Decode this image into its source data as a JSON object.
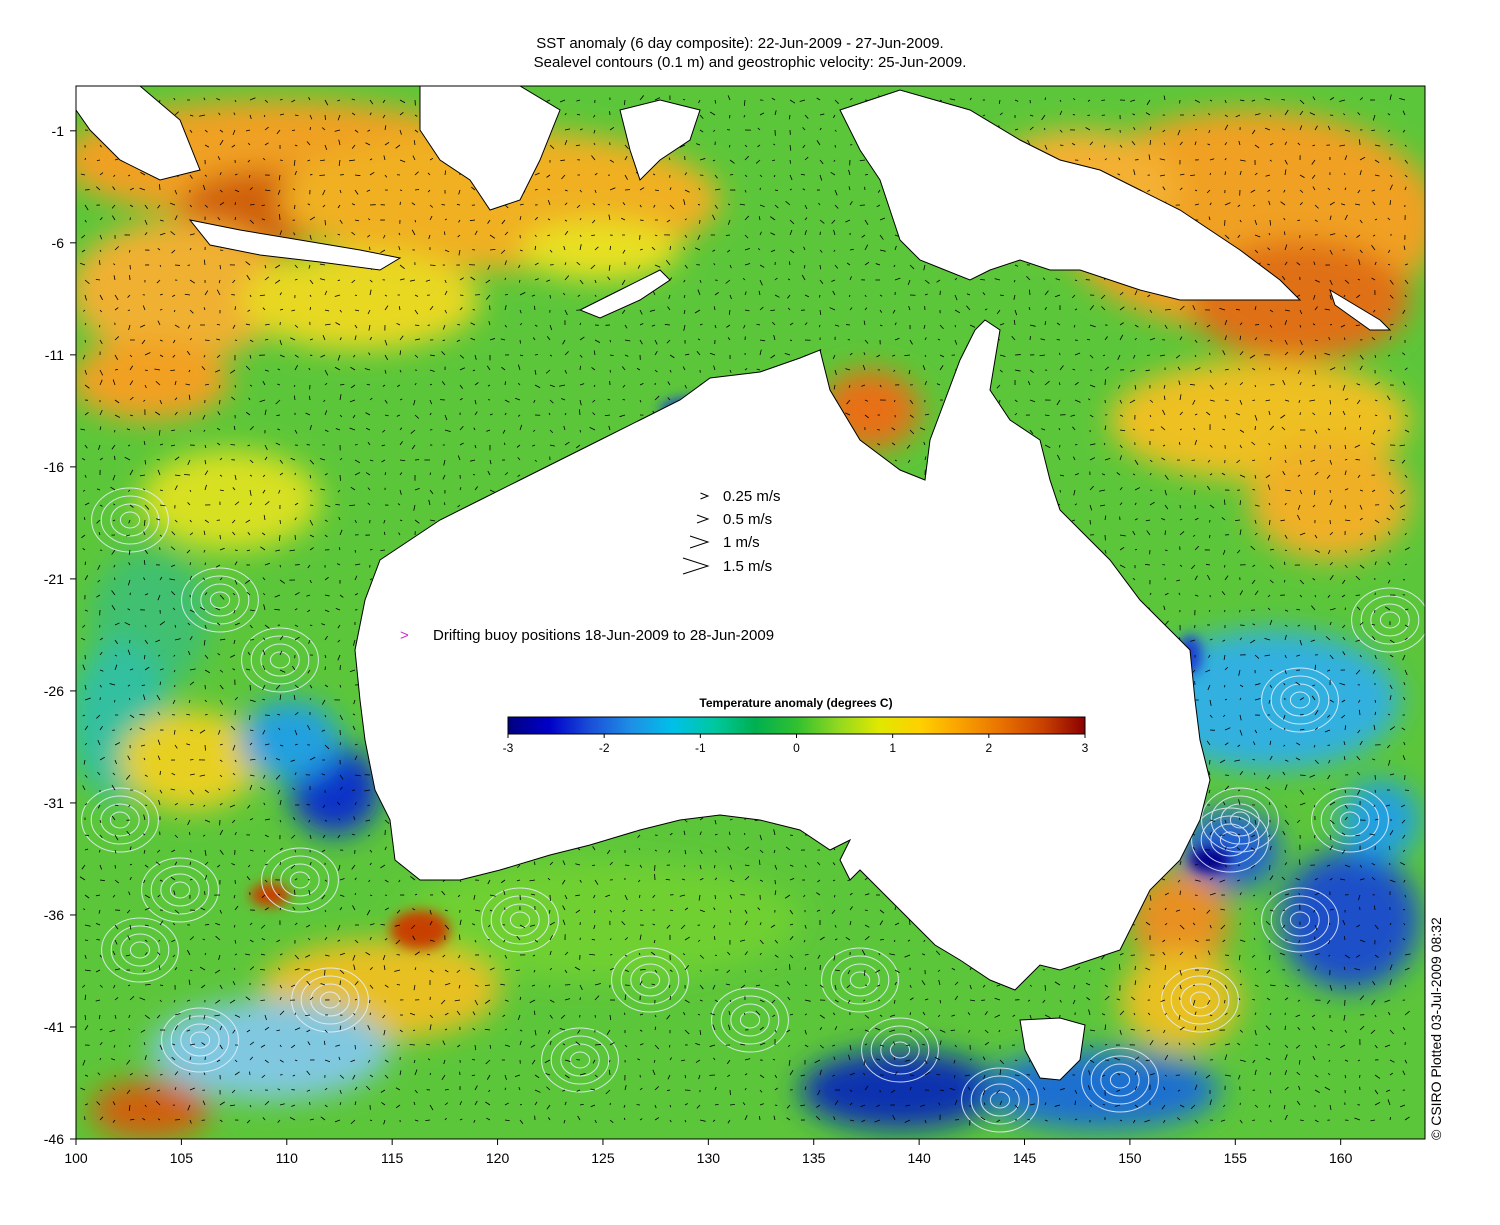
{
  "title": {
    "line1": "SST anomaly (6 day composite): 22-Jun-2009 - 27-Jun-2009.",
    "line2": "Sealevel contours (0.1 m) and geostrophic velocity: 25-Jun-2009."
  },
  "axes": {
    "x_ticks": [
      "100",
      "105",
      "110",
      "115",
      "120",
      "125",
      "130",
      "135",
      "140",
      "145",
      "150",
      "155",
      "160"
    ],
    "y_ticks": [
      "-1",
      "-6",
      "-11",
      "-16",
      "-21",
      "-26",
      "-31",
      "-36",
      "-41",
      "-46"
    ],
    "lon_range": [
      100,
      164
    ],
    "lat_range": [
      -46,
      1
    ]
  },
  "velocity_legend": [
    {
      "label": "0.25 m/s",
      "speed": 0.25
    },
    {
      "label": "0.5 m/s",
      "speed": 0.5
    },
    {
      "label": "1 m/s",
      "speed": 1
    },
    {
      "label": "1.5 m/s",
      "speed": 1.5
    }
  ],
  "buoy_legend": {
    "symbol": ">",
    "label": "Drifting buoy positions 18-Jun-2009 to 28-Jun-2009",
    "color": "#cc33cc"
  },
  "colorbar": {
    "title": "Temperature anomaly (degrees C)",
    "ticks": [
      "-3",
      "-2",
      "-1",
      "0",
      "1",
      "2",
      "3"
    ],
    "range": [
      -3,
      3
    ],
    "colors": [
      "#00007f",
      "#0000c8",
      "#1a4fd8",
      "#1e90e6",
      "#00c0e8",
      "#00c8a0",
      "#00b050",
      "#30c030",
      "#90d820",
      "#e0e800",
      "#ffd000",
      "#f9a000",
      "#e87000",
      "#c84000",
      "#8b0000"
    ]
  },
  "copyright": "© CSIRO Plotted 03-Jul-2009 08:32",
  "colors": {
    "ocean_base": "#5cc63a",
    "land": "#ffffff",
    "coast": "#000000",
    "contour": "#e8f0ff",
    "arrow": "#000000"
  }
}
